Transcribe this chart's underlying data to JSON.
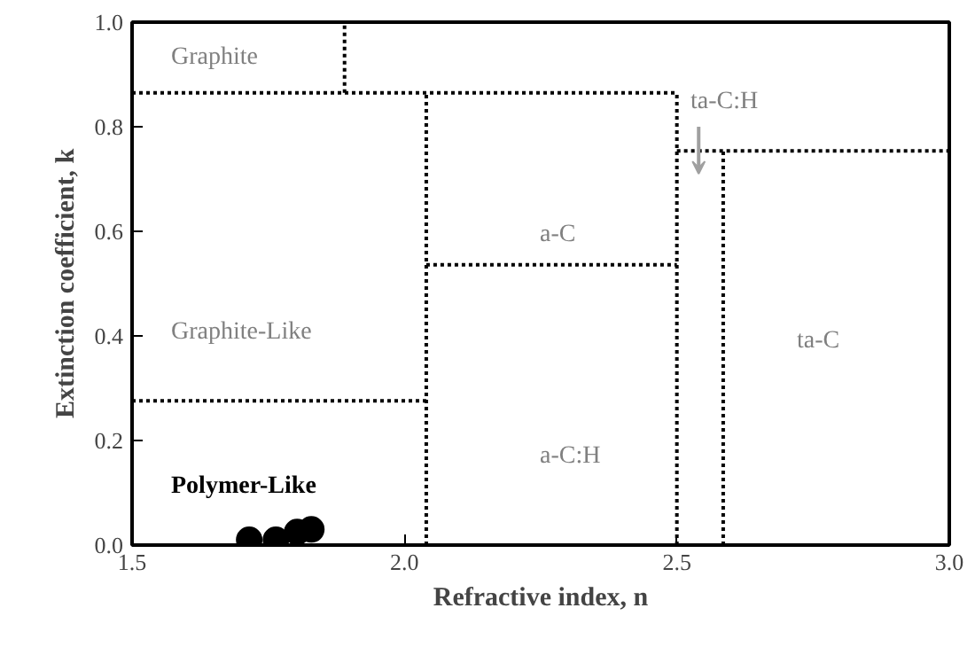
{
  "chart_data": {
    "type": "scatter",
    "xlabel": "Refractive index, n",
    "ylabel": "Extinction coefficient, k",
    "xlim": [
      1.5,
      3.0
    ],
    "ylim": [
      0,
      1.0
    ],
    "xticks": [
      {
        "value": 1.5,
        "label": "1.5"
      },
      {
        "value": 2.0,
        "label": "2.0"
      },
      {
        "value": 2.5,
        "label": "2.5"
      },
      {
        "value": 3.0,
        "label": "3.0"
      }
    ],
    "yticks": [
      {
        "value": 0,
        "label": "0.0"
      },
      {
        "value": 0.2,
        "label": "0.2"
      },
      {
        "value": 0.4,
        "label": "0.4"
      },
      {
        "value": 0.6,
        "label": "0.6"
      },
      {
        "value": 0.8,
        "label": "0.8"
      },
      {
        "value": 1.0,
        "label": "1.0"
      }
    ],
    "grid": false,
    "series": [
      {
        "marker": "circle",
        "color": "#000000",
        "x": [
          1.715,
          1.764,
          1.803,
          1.829
        ],
        "values": [
          0.01,
          0.01,
          0.025,
          0.03
        ]
      },
      {
        "type": "line",
        "line_style": "dotted",
        "color": "#000000",
        "x": [
          1.5,
          2.5
        ],
        "values": [
          0.865,
          0.865
        ]
      },
      {
        "type": "line",
        "line_style": "dotted",
        "color": "#000000",
        "x": [
          1.89,
          1.89
        ],
        "values": [
          0.865,
          1.0
        ]
      },
      {
        "type": "line",
        "line_style": "dotted",
        "color": "#000000",
        "x": [
          2.04,
          2.04
        ],
        "values": [
          0,
          0.865
        ]
      },
      {
        "type": "line",
        "line_style": "dotted",
        "color": "#000000",
        "x": [
          2.04,
          2.5
        ],
        "values": [
          0.536,
          0.536
        ]
      },
      {
        "type": "line",
        "line_style": "dotted",
        "color": "#000000",
        "x": [
          2.5,
          2.5
        ],
        "values": [
          0,
          0.865
        ]
      },
      {
        "type": "line",
        "line_style": "dotted",
        "color": "#000000",
        "x": [
          2.5,
          3.0
        ],
        "values": [
          0.754,
          0.754
        ]
      },
      {
        "type": "line",
        "line_style": "dotted",
        "color": "#000000",
        "x": [
          2.585,
          2.585
        ],
        "values": [
          0,
          0.754
        ]
      },
      {
        "type": "line",
        "line_style": "dotted",
        "color": "#000000",
        "x": [
          1.5,
          2.04
        ],
        "values": [
          0.276,
          0.276
        ]
      }
    ],
    "annotations": [
      "Graphite",
      "ta-C:H",
      "a-C",
      "Graphite-Like",
      "ta-C",
      "a-C:H",
      "Polymer-Like"
    ]
  }
}
